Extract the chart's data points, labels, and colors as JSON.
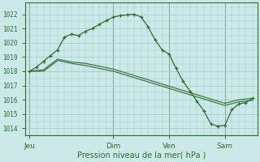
{
  "background_color": "#cce8e8",
  "grid_color": "#99cccc",
  "line_color": "#2d6e2d",
  "ylabel_ticks": [
    1014,
    1015,
    1016,
    1017,
    1018,
    1019,
    1020,
    1021,
    1022
  ],
  "ylim": [
    1013.5,
    1022.8
  ],
  "xlabel": "Pression niveau de la mer( hPa )",
  "day_labels": [
    "Jeu",
    "Dim",
    "Ven",
    "Sam"
  ],
  "day_positions": [
    0.0,
    0.375,
    0.625,
    0.875
  ],
  "series1_x": [
    0.0,
    0.03125,
    0.0625,
    0.09375,
    0.125,
    0.15625,
    0.1875,
    0.21875,
    0.25,
    0.28125,
    0.3125,
    0.34375,
    0.375,
    0.40625,
    0.4375,
    0.46875,
    0.5,
    0.53125,
    0.5625,
    0.59375,
    0.625,
    0.65625,
    0.6875,
    0.71875,
    0.75,
    0.78125,
    0.8125,
    0.84375,
    0.875,
    0.90625,
    0.9375,
    0.96875,
    1.0
  ],
  "series1_y": [
    1018.0,
    1018.3,
    1018.7,
    1019.1,
    1019.5,
    1020.4,
    1020.6,
    1020.5,
    1020.8,
    1021.0,
    1021.3,
    1021.55,
    1021.8,
    1021.9,
    1021.95,
    1022.0,
    1021.8,
    1021.1,
    1020.2,
    1019.5,
    1019.2,
    1018.2,
    1017.3,
    1016.6,
    1015.9,
    1015.2,
    1014.3,
    1014.15,
    1014.2,
    1015.3,
    1015.7,
    1015.8,
    1016.1
  ],
  "series2_x": [
    0.0,
    0.0625,
    0.125,
    0.1875,
    0.25,
    0.3125,
    0.375,
    0.4375,
    0.5,
    0.5625,
    0.625,
    0.6875,
    0.75,
    0.8125,
    0.875,
    0.9375,
    1.0
  ],
  "series2_y": [
    1018.0,
    1018.1,
    1018.85,
    1018.65,
    1018.55,
    1018.35,
    1018.15,
    1017.85,
    1017.55,
    1017.25,
    1016.95,
    1016.65,
    1016.35,
    1016.05,
    1015.75,
    1016.0,
    1016.1
  ],
  "series3_x": [
    0.0,
    0.0625,
    0.125,
    0.1875,
    0.25,
    0.3125,
    0.375,
    0.4375,
    0.5,
    0.5625,
    0.625,
    0.6875,
    0.75,
    0.8125,
    0.875,
    0.9375,
    1.0
  ],
  "series3_y": [
    1018.0,
    1018.0,
    1018.75,
    1018.55,
    1018.4,
    1018.2,
    1018.0,
    1017.7,
    1017.4,
    1017.1,
    1016.8,
    1016.5,
    1016.2,
    1015.9,
    1015.6,
    1015.85,
    1015.95
  ],
  "xlim": [
    -0.02,
    1.02
  ]
}
